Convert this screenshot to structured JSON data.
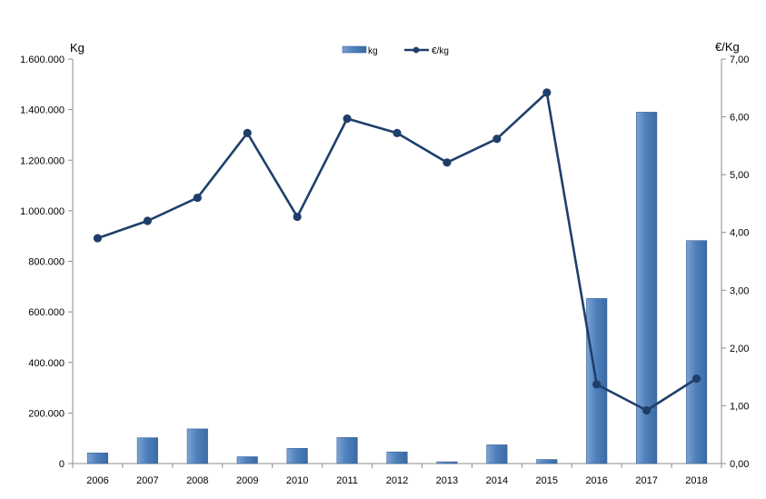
{
  "chart_data": {
    "type": "bar+line",
    "categories": [
      "2006",
      "2007",
      "2008",
      "2009",
      "2010",
      "2011",
      "2012",
      "2013",
      "2014",
      "2015",
      "2016",
      "2017",
      "2018"
    ],
    "series": [
      {
        "name": "kg",
        "type": "bar",
        "axis": "left",
        "values": [
          42000,
          102000,
          137000,
          27000,
          60000,
          103000,
          46000,
          7000,
          74000,
          16000,
          653000,
          1390000,
          882000
        ],
        "color": "#4f81bd"
      },
      {
        "name": "€/kg",
        "type": "line",
        "axis": "right",
        "values": [
          3.9,
          4.2,
          4.6,
          5.72,
          4.27,
          5.97,
          5.72,
          5.21,
          5.62,
          6.42,
          1.37,
          0.92,
          1.47
        ],
        "color": "#1f3f6b"
      }
    ],
    "left_axis": {
      "label": "Kg",
      "min": 0,
      "max": 1600000,
      "ticks": [
        {
          "value": 0,
          "label": "0"
        },
        {
          "value": 200000,
          "label": "200.000"
        },
        {
          "value": 400000,
          "label": "400.000"
        },
        {
          "value": 600000,
          "label": "600.000"
        },
        {
          "value": 800000,
          "label": "800.000"
        },
        {
          "value": 1000000,
          "label": "1.000.000"
        },
        {
          "value": 1200000,
          "label": "1.200.000"
        },
        {
          "value": 1400000,
          "label": "1.400.000"
        },
        {
          "value": 1600000,
          "label": "1.600.000"
        }
      ]
    },
    "right_axis": {
      "label": "€/Kg",
      "min": 0,
      "max": 7,
      "ticks": [
        {
          "value": 0,
          "label": "0,00"
        },
        {
          "value": 1,
          "label": "1,00"
        },
        {
          "value": 2,
          "label": "2,00"
        },
        {
          "value": 3,
          "label": "3,00"
        },
        {
          "value": 4,
          "label": "4,00"
        },
        {
          "value": 5,
          "label": "5,00"
        },
        {
          "value": 6,
          "label": "6,00"
        },
        {
          "value": 7,
          "label": "7,00"
        }
      ]
    },
    "legend": {
      "position": "top-center",
      "entries": [
        "kg",
        "€/kg"
      ]
    },
    "grid": false
  }
}
